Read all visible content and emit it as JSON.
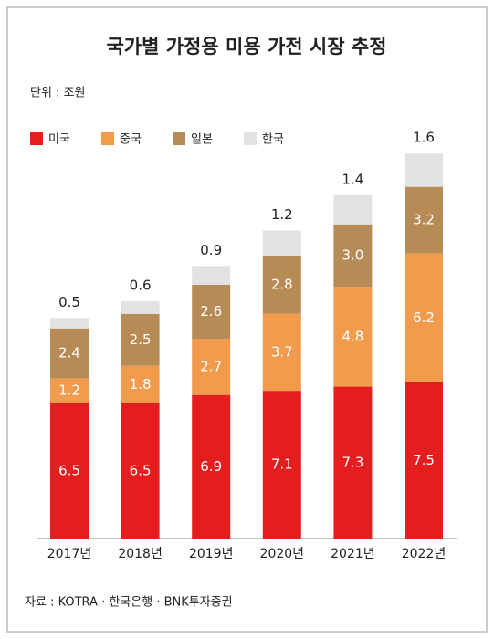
{
  "chart_data": {
    "type": "stacked_bar",
    "title": "국가별 가정용 미용 가전 시장 추정",
    "subtitle": "단위 : 조원",
    "source": "자료 : KOTRA · 한국은행 · BNK투자증권",
    "categories": [
      "2017년",
      "2018년",
      "2019년",
      "2020년",
      "2021년",
      "2022년"
    ],
    "series": [
      {
        "name": "미국",
        "color": "#e41d1f",
        "values": [
          6.5,
          6.5,
          6.9,
          7.1,
          7.3,
          7.5
        ]
      },
      {
        "name": "중국",
        "color": "#f39b4c",
        "values": [
          1.2,
          1.8,
          2.7,
          3.7,
          4.8,
          6.2
        ]
      },
      {
        "name": "일본",
        "color": "#b78b56",
        "values": [
          2.4,
          2.5,
          2.6,
          2.8,
          3.0,
          3.2
        ],
        "value_labels": [
          "2.4",
          "2.5",
          "2.6",
          "2.8",
          "3.0",
          "3.2"
        ]
      },
      {
        "name": "한국",
        "color": "#e2e2e2",
        "values": [
          0.5,
          0.6,
          0.9,
          1.2,
          1.4,
          1.6
        ]
      }
    ],
    "legend": "top-left"
  }
}
